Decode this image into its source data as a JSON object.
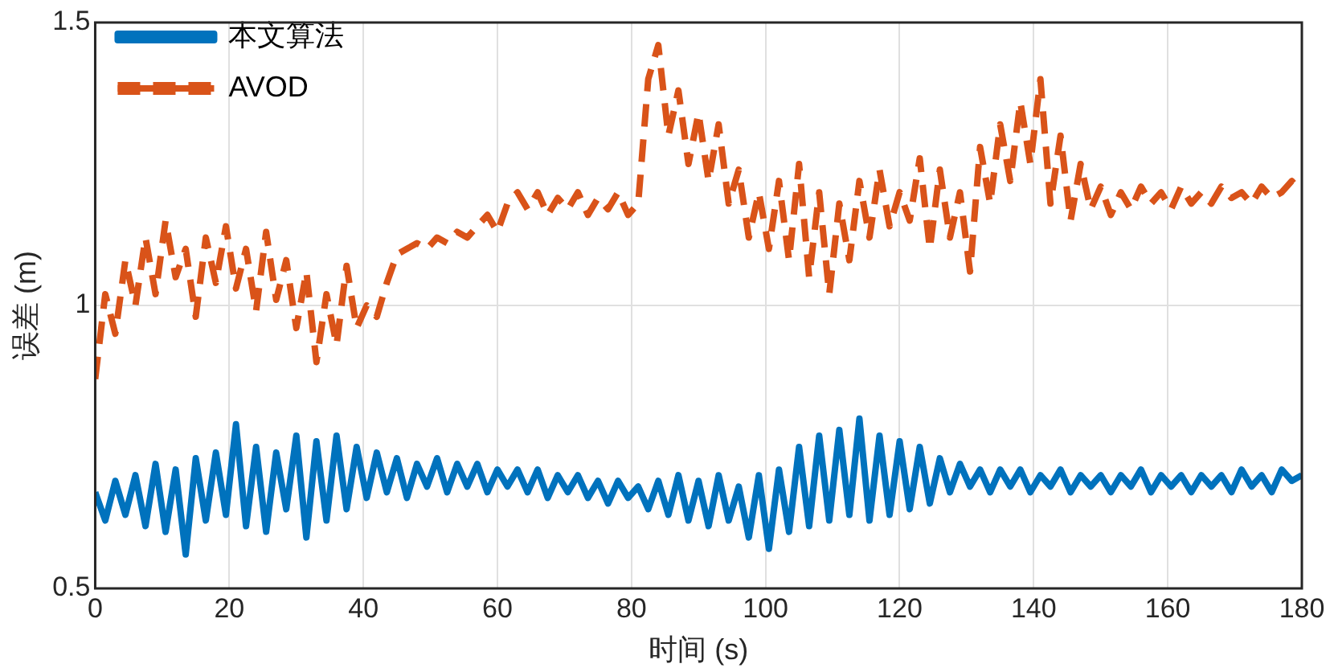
{
  "chart_data": {
    "type": "line",
    "xlabel": "时间 (s)",
    "ylabel": "误差 (m)",
    "x": [
      0,
      1.5,
      3,
      4.5,
      6,
      7.5,
      9,
      10.5,
      12,
      13.5,
      15,
      16.5,
      18,
      19.5,
      21,
      22.5,
      24,
      25.5,
      27,
      28.5,
      30,
      31.5,
      33,
      34.5,
      36,
      37.5,
      39,
      40.5,
      42,
      43.5,
      45,
      46.5,
      48,
      49.5,
      51,
      52.5,
      54,
      55.5,
      57,
      58.5,
      60,
      61.5,
      63,
      64.5,
      66,
      67.5,
      69,
      70.5,
      72,
      73.5,
      75,
      76.5,
      78,
      79.5,
      81,
      82.5,
      84,
      85.5,
      87,
      88.5,
      90,
      91.5,
      93,
      94.5,
      96,
      97.5,
      99,
      100.5,
      102,
      103.5,
      105,
      106.5,
      108,
      109.5,
      111,
      112.5,
      114,
      115.5,
      117,
      118.5,
      120,
      121.5,
      123,
      124.5,
      126,
      127.5,
      129,
      130.5,
      132,
      133.5,
      135,
      136.5,
      138,
      139.5,
      141,
      142.5,
      144,
      145.5,
      147,
      148.5,
      150,
      151.5,
      153,
      154.5,
      156,
      157.5,
      159,
      160.5,
      162,
      163.5,
      165,
      166.5,
      168,
      169.5,
      171,
      172.5,
      174,
      175.5,
      177,
      178.5,
      180
    ],
    "series": [
      {
        "name": "本文算法",
        "color": "#0072bd",
        "line_style": "solid",
        "values": [
          0.67,
          0.62,
          0.69,
          0.63,
          0.7,
          0.61,
          0.72,
          0.6,
          0.71,
          0.56,
          0.73,
          0.62,
          0.74,
          0.63,
          0.79,
          0.61,
          0.75,
          0.6,
          0.74,
          0.64,
          0.77,
          0.59,
          0.76,
          0.62,
          0.77,
          0.64,
          0.75,
          0.66,
          0.74,
          0.67,
          0.73,
          0.66,
          0.72,
          0.68,
          0.73,
          0.67,
          0.72,
          0.68,
          0.72,
          0.67,
          0.71,
          0.68,
          0.71,
          0.67,
          0.71,
          0.66,
          0.7,
          0.67,
          0.7,
          0.66,
          0.69,
          0.65,
          0.69,
          0.66,
          0.68,
          0.64,
          0.69,
          0.63,
          0.7,
          0.62,
          0.69,
          0.61,
          0.7,
          0.62,
          0.68,
          0.59,
          0.7,
          0.57,
          0.71,
          0.6,
          0.75,
          0.61,
          0.77,
          0.62,
          0.78,
          0.63,
          0.8,
          0.62,
          0.77,
          0.63,
          0.76,
          0.64,
          0.75,
          0.65,
          0.73,
          0.67,
          0.72,
          0.68,
          0.71,
          0.67,
          0.71,
          0.68,
          0.71,
          0.67,
          0.7,
          0.68,
          0.71,
          0.67,
          0.7,
          0.68,
          0.7,
          0.67,
          0.7,
          0.68,
          0.71,
          0.67,
          0.7,
          0.68,
          0.7,
          0.67,
          0.7,
          0.68,
          0.7,
          0.67,
          0.71,
          0.68,
          0.7,
          0.67,
          0.71,
          0.69,
          0.7
        ]
      },
      {
        "name": "AVOD",
        "color": "#d95319",
        "line_style": "dashed",
        "values": [
          0.87,
          1.02,
          0.95,
          1.08,
          1.0,
          1.12,
          1.02,
          1.15,
          1.05,
          1.1,
          0.98,
          1.12,
          1.04,
          1.14,
          1.03,
          1.1,
          0.99,
          1.13,
          1.01,
          1.08,
          0.96,
          1.06,
          0.9,
          1.02,
          0.93,
          1.07,
          0.96,
          1.0,
          0.98,
          1.04,
          1.09,
          1.1,
          1.11,
          1.1,
          1.12,
          1.11,
          1.13,
          1.12,
          1.14,
          1.16,
          1.13,
          1.18,
          1.2,
          1.17,
          1.2,
          1.16,
          1.19,
          1.17,
          1.2,
          1.16,
          1.19,
          1.17,
          1.2,
          1.16,
          1.18,
          1.4,
          1.46,
          1.3,
          1.38,
          1.25,
          1.34,
          1.22,
          1.32,
          1.18,
          1.24,
          1.12,
          1.2,
          1.1,
          1.22,
          1.08,
          1.25,
          1.05,
          1.2,
          1.02,
          1.18,
          1.08,
          1.22,
          1.12,
          1.24,
          1.14,
          1.2,
          1.15,
          1.26,
          1.1,
          1.24,
          1.12,
          1.2,
          1.06,
          1.28,
          1.18,
          1.32,
          1.22,
          1.36,
          1.25,
          1.4,
          1.18,
          1.3,
          1.15,
          1.25,
          1.17,
          1.21,
          1.16,
          1.2,
          1.17,
          1.21,
          1.18,
          1.2,
          1.17,
          1.21,
          1.18,
          1.2,
          1.18,
          1.21,
          1.19,
          1.2,
          1.18,
          1.21,
          1.19,
          1.2,
          1.22,
          1.2
        ]
      }
    ],
    "xlim": [
      0,
      180
    ],
    "xticks": [
      0,
      20,
      40,
      60,
      80,
      100,
      120,
      140,
      160,
      180
    ],
    "ylim": [
      0.5,
      1.5
    ],
    "yticks": [
      0.5,
      1,
      1.5
    ],
    "grid": true,
    "legend": "top left",
    "marker": "none"
  }
}
